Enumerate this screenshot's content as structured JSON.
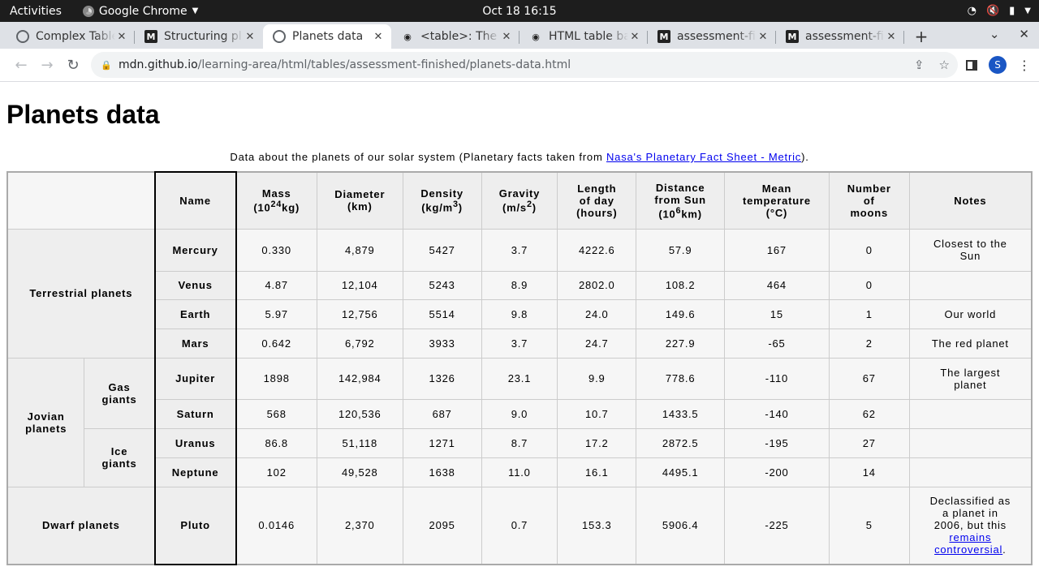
{
  "system": {
    "activities": "Activities",
    "app_name": "Google Chrome",
    "clock": "Oct 18  16:15"
  },
  "tabs": [
    {
      "title": "Complex Tables",
      "favicon": "globe-icon",
      "active": false
    },
    {
      "title": "Structuring pl",
      "favicon": "mdn-m-icon",
      "active": false
    },
    {
      "title": "Planets data",
      "favicon": "globe-icon",
      "active": true
    },
    {
      "title": "<table>: The T",
      "favicon": "mdn-icon",
      "active": false
    },
    {
      "title": "HTML table ba",
      "favicon": "mdn-icon",
      "active": false
    },
    {
      "title": "assessment-fin",
      "favicon": "mdn-m-icon",
      "active": false
    },
    {
      "title": "assessment-fin",
      "favicon": "mdn-m-icon",
      "active": false
    }
  ],
  "address_bar": {
    "host": "mdn.github.io",
    "path": "/learning-area/html/tables/assessment-finished/planets-data.html"
  },
  "profile_initial": "S",
  "page": {
    "title": "Planets data",
    "caption_prefix": "Data about the planets of our solar system (Planetary facts taken from ",
    "caption_link": "Nasa's Planetary Fact Sheet - Metric",
    "caption_suffix": ")."
  },
  "table": {
    "headers": {
      "name": "Name",
      "mass": "Mass",
      "mass_unit_a": "(10",
      "mass_unit_sup": "24",
      "mass_unit_b": "kg)",
      "diameter": "Diameter",
      "diameter_unit": "(km)",
      "density": "Density",
      "density_unit_a": "(kg/m",
      "density_unit_sup": "3",
      "density_unit_b": ")",
      "gravity": "Gravity",
      "gravity_unit_a": "(m/s",
      "gravity_unit_sup": "2",
      "gravity_unit_b": ")",
      "length_l1": "Length",
      "length_l2": "of day",
      "length_l3": "(hours)",
      "distance_l1": "Distance",
      "distance_l2": "from Sun",
      "distance_l3a": "(10",
      "distance_l3sup": "6",
      "distance_l3b": "km)",
      "temp_l1": "Mean",
      "temp_l2": "temperature",
      "temp_l3": "(°C)",
      "moons_l1": "Number",
      "moons_l2": "of",
      "moons_l3": "moons",
      "notes": "Notes"
    },
    "groups": {
      "terrestrial": "Terrestrial planets",
      "jovian_l1": "Jovian",
      "jovian_l2": "planets",
      "gas_l1": "Gas",
      "gas_l2": "giants",
      "ice_l1": "Ice",
      "ice_l2": "giants",
      "dwarf": "Dwarf planets"
    },
    "rows": [
      {
        "name": "Mercury",
        "mass": "0.330",
        "diameter": "4,879",
        "density": "5427",
        "gravity": "3.7",
        "day": "4222.6",
        "distance": "57.9",
        "temp": "167",
        "moons": "0",
        "notes_l1": "Closest to the",
        "notes_l2": "Sun"
      },
      {
        "name": "Venus",
        "mass": "4.87",
        "diameter": "12,104",
        "density": "5243",
        "gravity": "8.9",
        "day": "2802.0",
        "distance": "108.2",
        "temp": "464",
        "moons": "0",
        "notes_l1": "",
        "notes_l2": ""
      },
      {
        "name": "Earth",
        "mass": "5.97",
        "diameter": "12,756",
        "density": "5514",
        "gravity": "9.8",
        "day": "24.0",
        "distance": "149.6",
        "temp": "15",
        "moons": "1",
        "notes_l1": "Our world",
        "notes_l2": ""
      },
      {
        "name": "Mars",
        "mass": "0.642",
        "diameter": "6,792",
        "density": "3933",
        "gravity": "3.7",
        "day": "24.7",
        "distance": "227.9",
        "temp": "-65",
        "moons": "2",
        "notes_l1": "The red planet",
        "notes_l2": ""
      },
      {
        "name": "Jupiter",
        "mass": "1898",
        "diameter": "142,984",
        "density": "1326",
        "gravity": "23.1",
        "day": "9.9",
        "distance": "778.6",
        "temp": "-110",
        "moons": "67",
        "notes_l1": "The largest",
        "notes_l2": "planet"
      },
      {
        "name": "Saturn",
        "mass": "568",
        "diameter": "120,536",
        "density": "687",
        "gravity": "9.0",
        "day": "10.7",
        "distance": "1433.5",
        "temp": "-140",
        "moons": "62",
        "notes_l1": "",
        "notes_l2": ""
      },
      {
        "name": "Uranus",
        "mass": "86.8",
        "diameter": "51,118",
        "density": "1271",
        "gravity": "8.7",
        "day": "17.2",
        "distance": "2872.5",
        "temp": "-195",
        "moons": "27",
        "notes_l1": "",
        "notes_l2": ""
      },
      {
        "name": "Neptune",
        "mass": "102",
        "diameter": "49,528",
        "density": "1638",
        "gravity": "11.0",
        "day": "16.1",
        "distance": "4495.1",
        "temp": "-200",
        "moons": "14",
        "notes_l1": "",
        "notes_l2": ""
      },
      {
        "name": "Pluto",
        "mass": "0.0146",
        "diameter": "2,370",
        "density": "2095",
        "gravity": "0.7",
        "day": "153.3",
        "distance": "5906.4",
        "temp": "-225",
        "moons": "5",
        "notes_l1": "Declassified as",
        "notes_l2": "a planet in",
        "notes_l3": "2006, but this",
        "notes_link_l1": "remains",
        "notes_link_l2": "controversial",
        "notes_end": "."
      }
    ]
  }
}
